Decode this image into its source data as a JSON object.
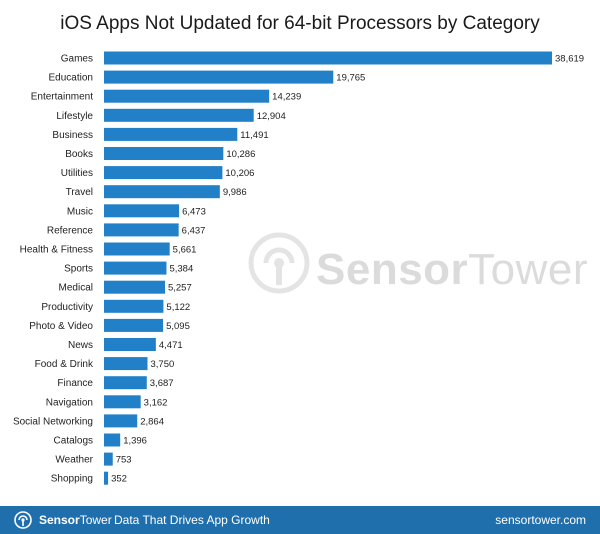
{
  "chart_data": {
    "type": "bar",
    "orientation": "horizontal",
    "title": "iOS Apps Not Updated for 64-bit Processors by Category",
    "categories": [
      "Games",
      "Education",
      "Entertainment",
      "Lifestyle",
      "Business",
      "Books",
      "Utilities",
      "Travel",
      "Music",
      "Reference",
      "Health & Fitness",
      "Sports",
      "Medical",
      "Productivity",
      "Photo & Video",
      "News",
      "Food & Drink",
      "Finance",
      "Navigation",
      "Social Networking",
      "Catalogs",
      "Weather",
      "Shopping"
    ],
    "values": [
      38619,
      19765,
      14239,
      12904,
      11491,
      10286,
      10206,
      9986,
      6473,
      6437,
      5661,
      5384,
      5257,
      5122,
      5095,
      4471,
      3750,
      3687,
      3162,
      2864,
      1396,
      753,
      352
    ],
    "value_labels": [
      "38,619",
      "19,765",
      "14,239",
      "12,904",
      "11,491",
      "10,286",
      "10,206",
      "9,986",
      "6,473",
      "6,437",
      "5,661",
      "5,384",
      "5,257",
      "5,122",
      "5,095",
      "4,471",
      "3,750",
      "3,687",
      "3,162",
      "2,864",
      "1,396",
      "753",
      "352"
    ],
    "xlim": [
      0,
      38619
    ],
    "grid": false,
    "bar_color": "#2280c8"
  },
  "watermark": {
    "brand_bold": "Sensor",
    "brand_light": "Tower"
  },
  "footer": {
    "brand_bold": "Sensor",
    "brand_light": "Tower",
    "tagline": "Data That Drives App Growth",
    "url": "sensortower.com",
    "color": "#1f6fad"
  }
}
